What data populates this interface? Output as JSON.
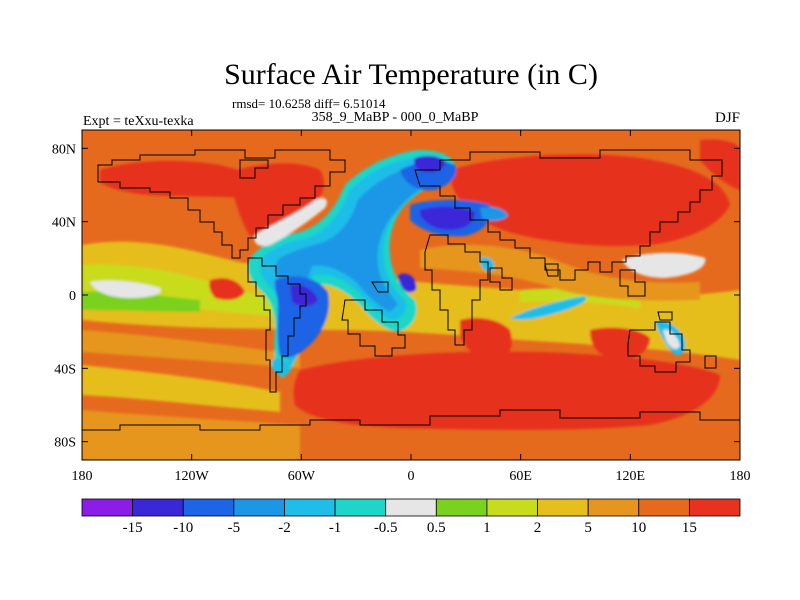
{
  "title": "Surface Air Temperature (in C)",
  "stats": "rmsd= 10.6258  diff= 6.51014",
  "left_label": "Expt = teXxu-texka",
  "center_label": "358_9_MaBP - 000_0_MaBP",
  "right_label": "DJF",
  "map": {
    "lon_range": [
      -180,
      180
    ],
    "lat_range": [
      -90,
      90
    ],
    "lat_ticks": [
      {
        "value": 80,
        "label": "80N"
      },
      {
        "value": 40,
        "label": "40N"
      },
      {
        "value": 0,
        "label": "0"
      },
      {
        "value": -40,
        "label": "40S"
      },
      {
        "value": -80,
        "label": "80S"
      }
    ],
    "lon_ticks": [
      {
        "value": -180,
        "label": "180"
      },
      {
        "value": -120,
        "label": "120W"
      },
      {
        "value": -60,
        "label": "60W"
      },
      {
        "value": 0,
        "label": "0"
      },
      {
        "value": 60,
        "label": "60E"
      },
      {
        "value": 120,
        "label": "120E"
      },
      {
        "value": 180,
        "label": "180"
      }
    ]
  },
  "colorbar": {
    "colors": [
      "#8a1ee6",
      "#3a28d8",
      "#1e64e6",
      "#1e96e6",
      "#1ebee8",
      "#1ed6c8",
      "#e6e6e6",
      "#7ad21e",
      "#c8dc1e",
      "#e6be1e",
      "#e6961e",
      "#e66a1e",
      "#e6321e"
    ],
    "labels": [
      "-15",
      "-10",
      "-5",
      "-2",
      "-1",
      "-0.5",
      "0.5",
      "1",
      "2",
      "5",
      "10",
      "15"
    ]
  }
}
